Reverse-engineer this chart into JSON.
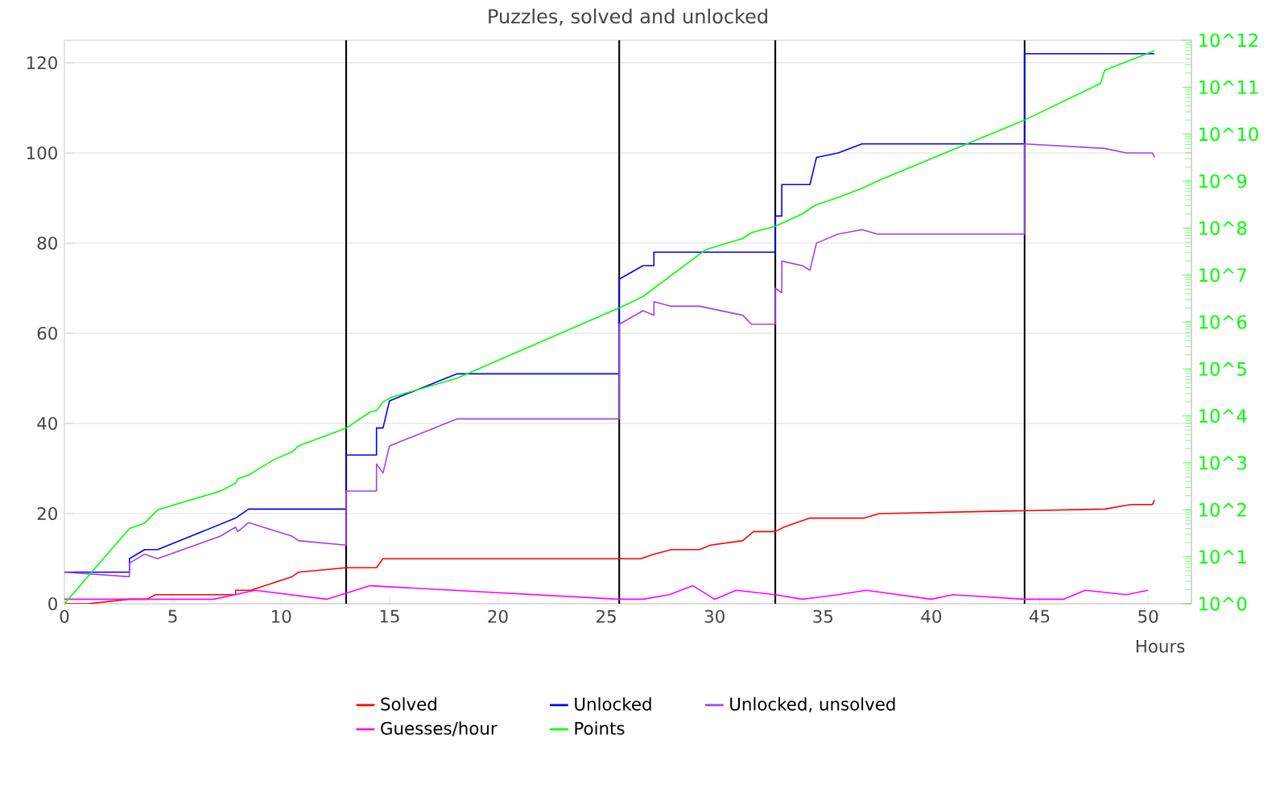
{
  "chart_data": {
    "type": "line",
    "title": "Puzzles, solved and unlocked",
    "xlabel": "Hours",
    "xlim": [
      0,
      52
    ],
    "xticks": [
      0,
      5,
      10,
      15,
      20,
      25,
      30,
      35,
      40,
      45,
      50
    ],
    "ylim": [
      0,
      125
    ],
    "yticks": [
      0,
      20,
      40,
      60,
      80,
      100,
      120
    ],
    "y2lim": [
      1,
      1000000000000
    ],
    "log": "y2",
    "y2ticks": [
      {
        "value": 1,
        "label": "10^0"
      },
      {
        "value": 10,
        "label": "10^1"
      },
      {
        "value": 100,
        "label": "10^2"
      },
      {
        "value": 1000,
        "label": "10^3"
      },
      {
        "value": 10000,
        "label": "10^4"
      },
      {
        "value": 100000,
        "label": "10^5"
      },
      {
        "value": 1000000,
        "label": "10^6"
      },
      {
        "value": 10000000,
        "label": "10^7"
      },
      {
        "value": 100000000,
        "label": "10^8"
      },
      {
        "value": 1000000000,
        "label": "10^9"
      },
      {
        "value": 10000000000,
        "label": "10^10"
      },
      {
        "value": 100000000000,
        "label": "10^11"
      },
      {
        "value": 1000000000000,
        "label": "10^12"
      }
    ],
    "grid": "y",
    "legend": "bottom",
    "series": [
      {
        "name": "Solved",
        "color": "#ff0000",
        "x": [
          0,
          1.1,
          3.0,
          3.8,
          4.2,
          7.9,
          7.9,
          8.6,
          10.5,
          10.8,
          13.0,
          14.4,
          14.7,
          26.6,
          27.2,
          28.0,
          29.3,
          29.8,
          31.3,
          31.8,
          32.8,
          33.2,
          34.4,
          36.9,
          37.6,
          48.0,
          49.2,
          50.2,
          50.3
        ],
        "values": [
          0,
          0,
          1,
          1,
          2,
          2,
          3,
          3,
          6,
          7,
          8,
          8,
          10,
          10,
          11,
          12,
          12,
          13,
          14,
          16,
          16,
          17,
          19,
          19,
          20,
          21,
          22,
          22,
          23
        ]
      },
      {
        "name": "Unlocked",
        "color": "#0000ff",
        "x": [
          0,
          3.0,
          3.0,
          3.7,
          4.3,
          7.9,
          8.5,
          13.0,
          13.0,
          14.4,
          14.4,
          14.7,
          15.0,
          18.1,
          25.6,
          25.6,
          26.7,
          27.2,
          27.2,
          32.8,
          32.8,
          33.1,
          33.1,
          34.4,
          34.7,
          35.7,
          36.8,
          44.3,
          44.3,
          50.3
        ],
        "values": [
          7,
          7,
          10,
          12,
          12,
          19,
          21,
          21,
          33,
          33,
          39,
          39,
          45,
          51,
          51,
          72,
          75,
          75,
          78,
          78,
          86,
          86,
          93,
          93,
          99,
          100,
          102,
          102,
          122,
          122
        ]
      },
      {
        "name": "Unlocked, unsolved",
        "color": "#a040f0",
        "x": [
          0,
          3.0,
          3.0,
          3.7,
          4.3,
          7.2,
          7.9,
          8.0,
          8.5,
          10.5,
          10.8,
          13.0,
          13.0,
          14.4,
          14.4,
          14.7,
          15.0,
          18.1,
          25.6,
          25.6,
          26.7,
          27.2,
          27.2,
          28.0,
          29.3,
          31.3,
          31.7,
          32.8,
          32.8,
          33.1,
          33.1,
          34.05,
          34.4,
          34.7,
          35.7,
          36.8,
          37.5,
          44.3,
          44.3,
          48.0,
          49.0,
          50.2,
          50.3
        ],
        "values": [
          7,
          6,
          9,
          11,
          10,
          15,
          17,
          16,
          18,
          15,
          14,
          13,
          25,
          25,
          31,
          29,
          35,
          41,
          41,
          62,
          65,
          64,
          67,
          66,
          66,
          64,
          62,
          62,
          70,
          69,
          76,
          75,
          74,
          80,
          82,
          83,
          82,
          82,
          102,
          101,
          100,
          100,
          99
        ]
      },
      {
        "name": "Guesses/hour",
        "color": "#ff00ff",
        "x": [
          0,
          6.9,
          8.8,
          12.1,
          14.1,
          25.6,
          26.7,
          27.9,
          29.0,
          30.0,
          31.0,
          32.8,
          34.05,
          35.7,
          37.0,
          40.0,
          41.0,
          44.3,
          46.1,
          47.1,
          49.0,
          50.0
        ],
        "values": [
          1,
          1,
          3,
          1,
          4,
          1,
          1,
          2,
          4,
          1,
          3,
          2,
          1,
          2,
          3,
          1,
          2,
          1,
          1,
          3,
          2,
          3
        ]
      },
      {
        "name": "Points",
        "color": "#00ff00",
        "axis": "y2",
        "x": [
          0,
          3.0,
          3.7,
          4.3,
          7.2,
          7.9,
          8.0,
          8.5,
          9.7,
          10.5,
          10.8,
          13.0,
          14.1,
          14.4,
          14.7,
          15.1,
          18.1,
          25.6,
          26.7,
          29.6,
          31.3,
          31.7,
          32.8,
          34.05,
          34.6,
          35.7,
          36.8,
          37.5,
          44.3,
          47.8,
          48.0,
          50.3
        ],
        "values": [
          1,
          40,
          52,
          100,
          250,
          370,
          460,
          550,
          1200,
          1700,
          2300,
          5500,
          12000,
          13000,
          20000,
          25000,
          63000,
          2000000,
          3500000,
          35000000,
          60000000,
          80000000,
          110000000,
          200000000,
          300000000,
          450000000,
          700000000,
          1000000000,
          20000000000,
          120000000000,
          230000000000,
          600000000000
        ]
      }
    ],
    "ref_lines": [
      {
        "axis": "x",
        "value": 13.0,
        "color": "#000000"
      },
      {
        "axis": "x",
        "value": 25.6,
        "color": "#000000"
      },
      {
        "axis": "x",
        "value": 32.8,
        "color": "#000000"
      },
      {
        "axis": "x",
        "value": 44.3,
        "color": "#000000"
      }
    ]
  }
}
